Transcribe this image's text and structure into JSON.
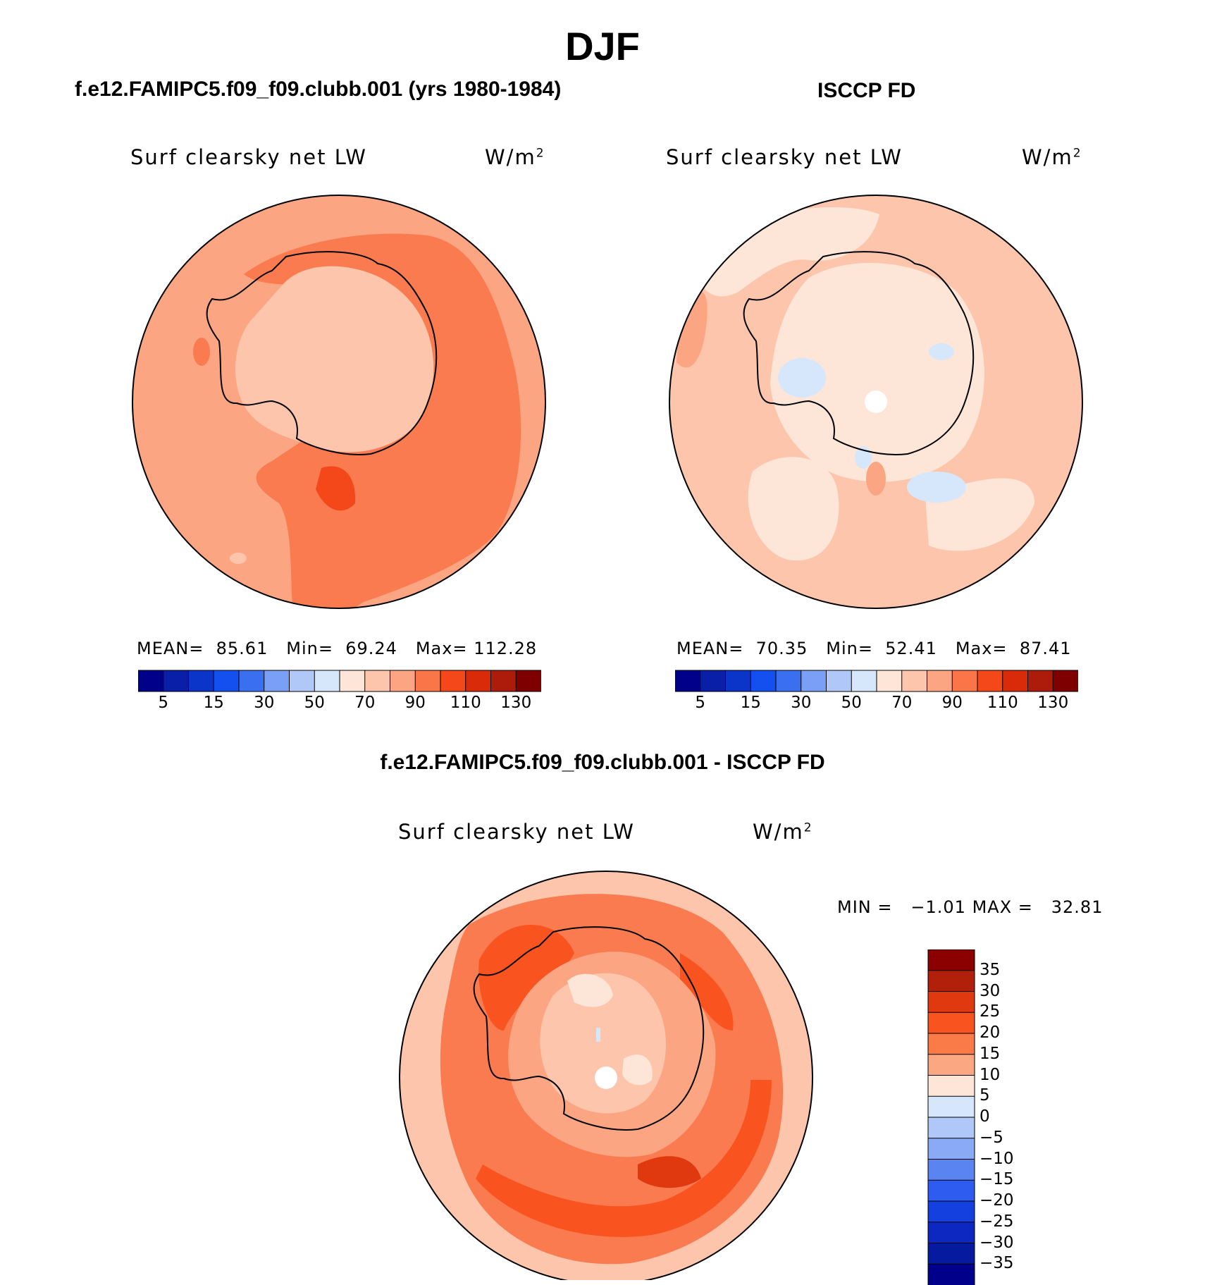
{
  "figure": {
    "title": "DJF"
  },
  "panels": [
    {
      "title": "f.e12.FAMIPC5.f09_f09.clubb.001 (yrs 1980-1984)",
      "variable": "Surf clearsky net LW",
      "units": "W/m",
      "units_exp": "2",
      "stats": {
        "mean_label": "MEAN=",
        "mean": "85.61",
        "min_label": "Min=",
        "min": "69.24",
        "max_label": "Max=",
        "max": "112.28"
      },
      "colorbar": {
        "colors": [
          "#00008b",
          "#0a1fa8",
          "#0b35c8",
          "#1450f0",
          "#3a70f0",
          "#7aa0f5",
          "#b0c8f8",
          "#d6e6fb",
          "#fde6d8",
          "#fcc5ac",
          "#fca582",
          "#fa7648",
          "#f4481a",
          "#d92b0a",
          "#ad1c0b",
          "#7f0000"
        ],
        "tick_labels": [
          "5",
          "15",
          "30",
          "50",
          "70",
          "90",
          "110",
          "130"
        ]
      }
    },
    {
      "title": "ISCCP FD",
      "variable": "Surf clearsky net LW",
      "units": "W/m",
      "units_exp": "2",
      "stats": {
        "mean_label": "MEAN=",
        "mean": "70.35",
        "min_label": "Min=",
        "min": "52.41",
        "max_label": "Max=",
        "max": "87.41"
      },
      "colorbar": {
        "colors": [
          "#00008b",
          "#0a1fa8",
          "#0b35c8",
          "#1450f0",
          "#3a70f0",
          "#7aa0f5",
          "#b0c8f8",
          "#d6e6fb",
          "#fde6d8",
          "#fcc5ac",
          "#fca582",
          "#fa7648",
          "#f4481a",
          "#d92b0a",
          "#ad1c0b",
          "#7f0000"
        ],
        "tick_labels": [
          "5",
          "15",
          "30",
          "50",
          "70",
          "90",
          "110",
          "130"
        ]
      }
    },
    {
      "title": "f.e12.FAMIPC5.f09_f09.clubb.001 - ISCCP FD",
      "variable": "Surf clearsky net LW",
      "units": "W/m",
      "units_exp": "2",
      "stats": {
        "min_label": "MIN =",
        "min": "−1.01",
        "max_label": "MAX =",
        "max": "32.81"
      },
      "colorbar": {
        "colors": [
          "#8b0000",
          "#b0200a",
          "#e0380f",
          "#f95420",
          "#fa7a48",
          "#fba882",
          "#fde6d8",
          "#d6e6fb",
          "#b0c8f8",
          "#8aaaf5",
          "#5a84f0",
          "#2e5cf0",
          "#1440e0",
          "#0c28c0",
          "#061aa0",
          "#00008b"
        ],
        "tick_labels": [
          "35",
          "30",
          "25",
          "20",
          "15",
          "10",
          "5",
          "0",
          "−5",
          "−10",
          "−15",
          "−20",
          "−25",
          "−30",
          "−35"
        ]
      }
    }
  ]
}
